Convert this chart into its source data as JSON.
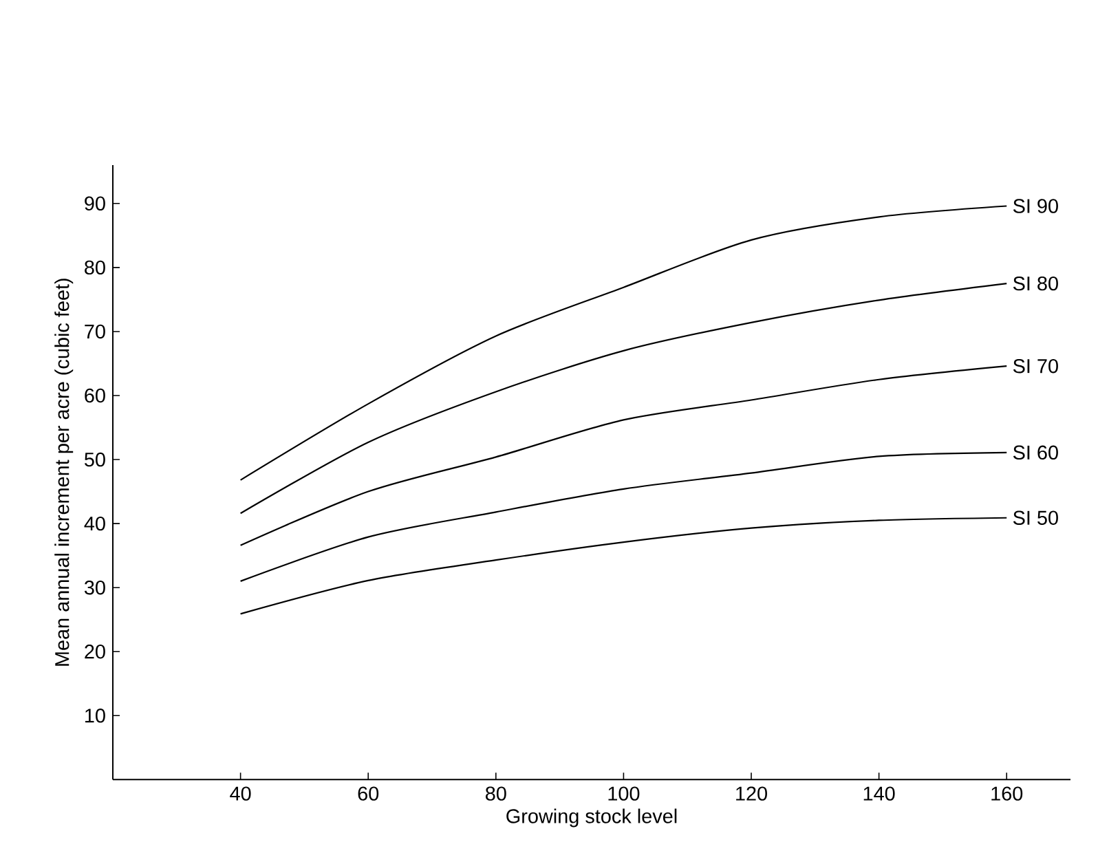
{
  "chart_data": {
    "type": "line",
    "xlabel": "Growing stock level",
    "ylabel": "Mean annual increment per acre (cubic feet)",
    "x": [
      40,
      60,
      80,
      100,
      120,
      140,
      160
    ],
    "series": [
      {
        "name": "SI 90",
        "color": "#000000",
        "values": [
          46.8,
          58.7,
          69.3,
          76.9,
          84.3,
          87.9,
          89.6
        ]
      },
      {
        "name": "SI 80",
        "color": "#000000",
        "values": [
          41.6,
          52.7,
          60.6,
          67.0,
          71.4,
          74.9,
          77.5
        ]
      },
      {
        "name": "SI 70",
        "color": "#000000",
        "values": [
          36.6,
          45.0,
          50.4,
          56.2,
          59.3,
          62.5,
          64.6
        ]
      },
      {
        "name": "SI 60",
        "color": "#000000",
        "values": [
          31.0,
          37.9,
          41.8,
          45.4,
          47.9,
          50.5,
          51.1
        ]
      },
      {
        "name": "SI 50",
        "color": "#000000",
        "values": [
          25.9,
          31.1,
          34.3,
          37.1,
          39.3,
          40.5,
          40.9
        ]
      }
    ],
    "xlim": [
      20,
      170
    ],
    "ylim": [
      0,
      96
    ],
    "xticks": [
      40,
      60,
      80,
      100,
      120,
      140,
      160
    ],
    "yticks": [
      10,
      20,
      30,
      40,
      50,
      60,
      70,
      80,
      90
    ],
    "grid": false,
    "legend": false,
    "marker": "none",
    "line_style": "solid"
  }
}
